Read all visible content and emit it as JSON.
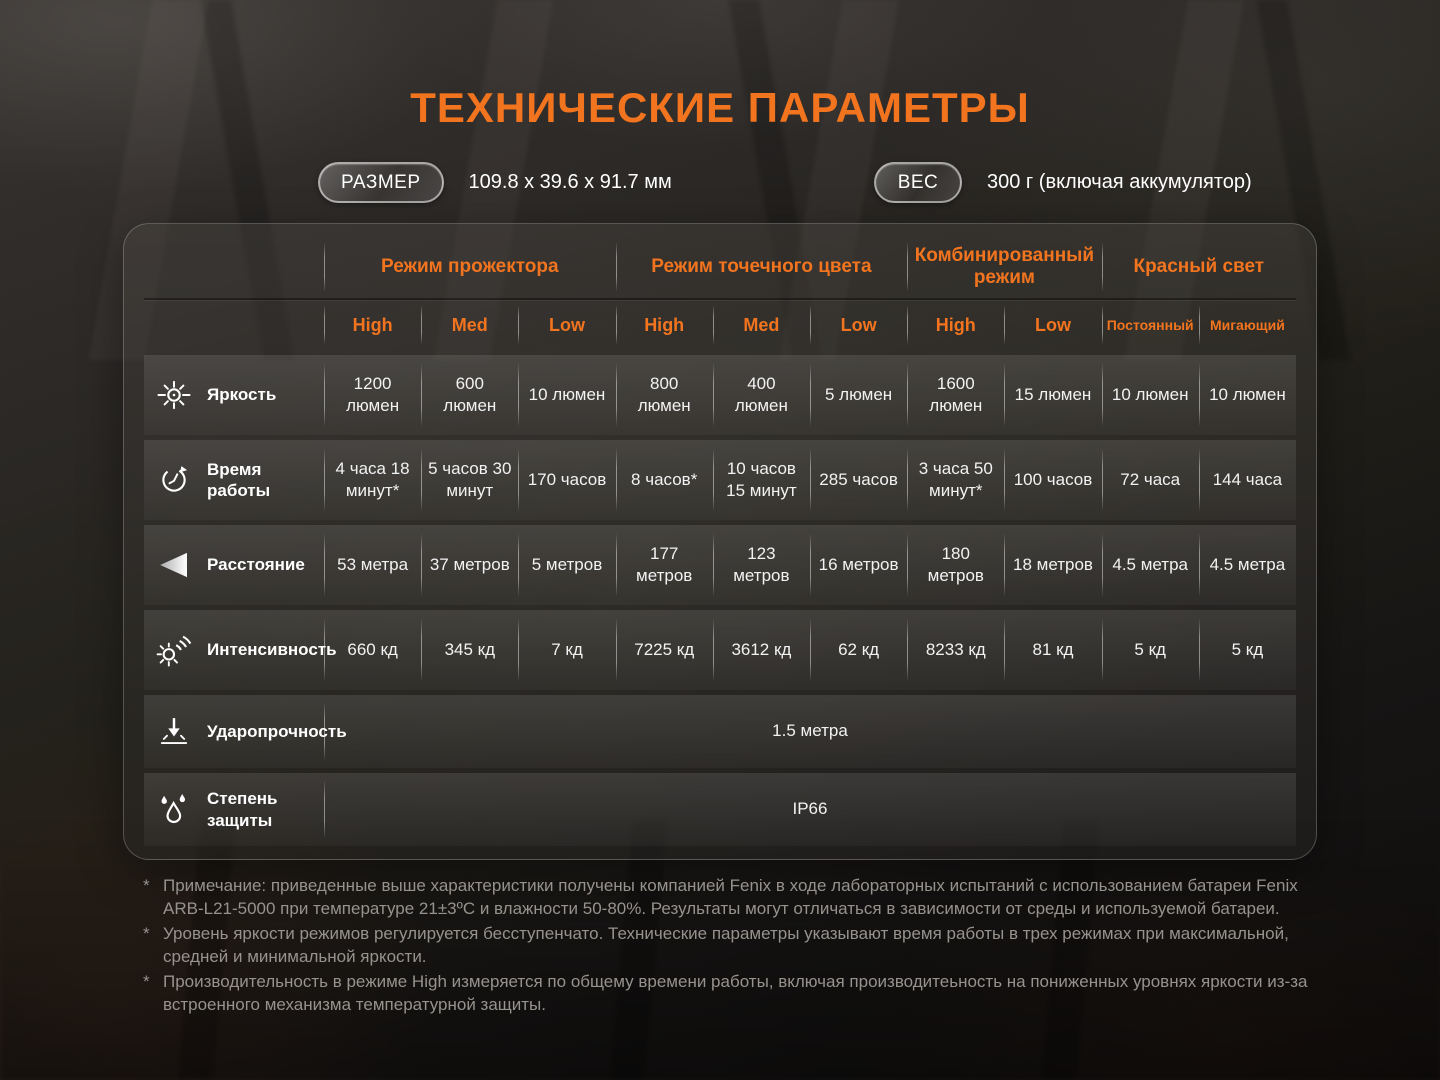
{
  "title": "ТЕХНИЧЕСКИЕ ПАРАМЕТРЫ",
  "specs": {
    "size_label": "РАЗМЕР",
    "size_value": "109.8 x 39.6 x 91.7 мм",
    "weight_label": "ВЕС",
    "weight_value": "300 г (включая аккумулятор)"
  },
  "table": {
    "groups": [
      {
        "label": "Режим прожектора",
        "span": 3
      },
      {
        "label": "Режим точечного цвета",
        "span": 3
      },
      {
        "label": "Комбинированный режим",
        "span": 2
      },
      {
        "label": "Красный свет",
        "span": 2
      }
    ],
    "columns": [
      "High",
      "Med",
      "Low",
      "High",
      "Med",
      "Low",
      "High",
      "Low",
      "Постоянный",
      "Мигающий"
    ],
    "rows": [
      {
        "icon": "brightness-icon",
        "label": "Яркость",
        "values": [
          "1200 люмен",
          "600 люмен",
          "10 люмен",
          "800 люмен",
          "400 люмен",
          "5 люмен",
          "1600 люмен",
          "15 люмен",
          "10 люмен",
          "10 люмен"
        ]
      },
      {
        "icon": "runtime-icon",
        "label": "Время работы",
        "values": [
          "4 часа 18 минут*",
          "5 часов 30 минут",
          "170 часов",
          "8 часов*",
          "10 часов 15 минут",
          "285 часов",
          "3 часа 50 минут*",
          "100 часов",
          "72 часа",
          "144 часа"
        ]
      },
      {
        "icon": "distance-icon",
        "label": "Расстояние",
        "values": [
          "53 метра",
          "37 метров",
          "5 метров",
          "177 метров",
          "123 метров",
          "16 метров",
          "180 метров",
          "18 метров",
          "4.5 метра",
          "4.5 метра"
        ]
      },
      {
        "icon": "intensity-icon",
        "label": "Интенсивность",
        "values": [
          "660 кд",
          "345 кд",
          "7 кд",
          "7225 кд",
          "3612 кд",
          "62 кд",
          "8233 кд",
          "81 кд",
          "5 кд",
          "5 кд"
        ]
      },
      {
        "icon": "impact-icon",
        "label": "Ударопрочность",
        "span_value": "1.5 метра"
      },
      {
        "icon": "waterproof-icon",
        "label": "Степень защиты",
        "span_value": "IP66"
      }
    ]
  },
  "footnote_marker": "*",
  "footnotes": [
    "Примечание: приведенные выше характеристики получены компанией Fenix в ходе лабораторных испытаний с использованием батареи Fenix ARB-L21-5000 при температуре 21±3ºC и влажности 50-80%. Результаты могут отличаться в зависимости от среды и используемой батареи.",
    "Уровень яркости режимов регулируется бесступенчато. Технические параметры указывают время работы в трех режимах при максимальной, средней и минимальной яркости.",
    "Производительность в режиме High измеряется по общему времени работы, включая производитеьность на пониженных уровнях яркости из-за встроенного механизма температурной защиты."
  ],
  "colors": {
    "accent": "#f2741e"
  }
}
